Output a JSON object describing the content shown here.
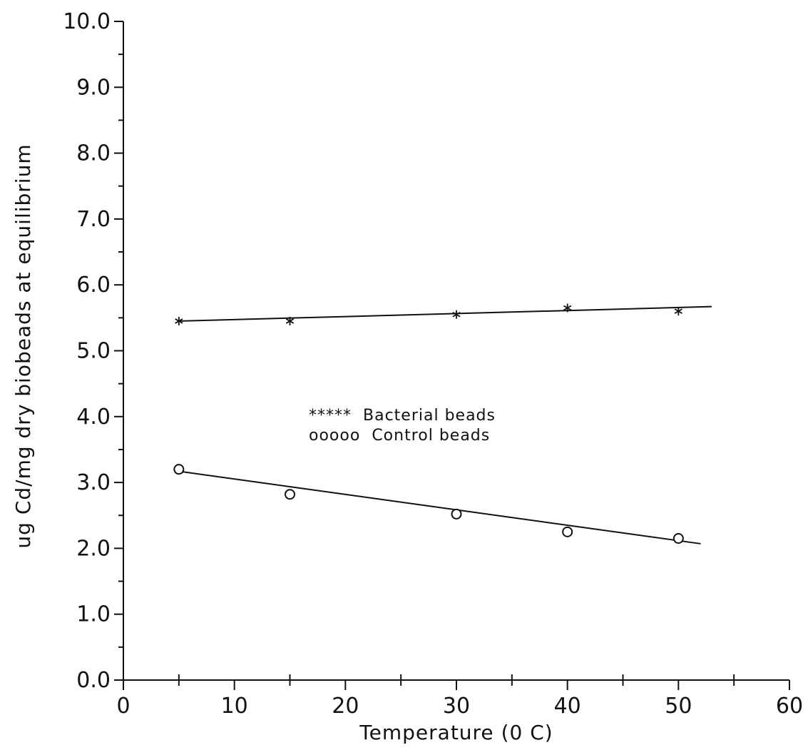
{
  "chart_data": {
    "type": "scatter",
    "xlabel": "Temperature (0 C)",
    "ylabel": "ug Cd/mg dry biobeads at equilibrium",
    "xlim": [
      0,
      60
    ],
    "ylim": [
      0,
      10
    ],
    "x_ticks": [
      "0",
      "10",
      "20",
      "30",
      "40",
      "50",
      "60"
    ],
    "y_ticks": [
      "0.0",
      "1.0",
      "2.0",
      "3.0",
      "4.0",
      "5.0",
      "6.0",
      "7.0",
      "8.0",
      "9.0",
      "10.0"
    ],
    "grid": false,
    "legend_position": "center",
    "series": [
      {
        "name": "Bacterial beads",
        "legend_marker_text": "*****",
        "marker": "asterisk",
        "x": [
          5,
          15,
          30,
          40,
          50
        ],
        "y": [
          5.45,
          5.45,
          5.55,
          5.65,
          5.6
        ],
        "fit_line": {
          "x": [
            5,
            53
          ],
          "y": [
            5.45,
            5.67
          ]
        }
      },
      {
        "name": "Control beads",
        "legend_marker_text": "ooooo",
        "marker": "circle",
        "x": [
          5,
          15,
          30,
          40,
          50
        ],
        "y": [
          3.2,
          2.82,
          2.52,
          2.25,
          2.15
        ],
        "fit_line": {
          "x": [
            5,
            52
          ],
          "y": [
            3.17,
            2.07
          ]
        }
      }
    ]
  }
}
